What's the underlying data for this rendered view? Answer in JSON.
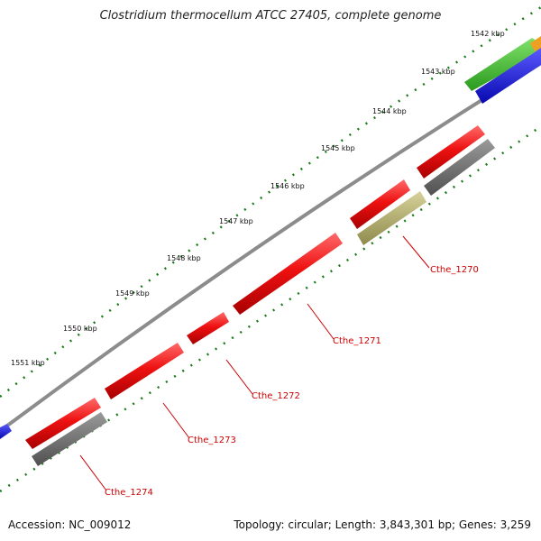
{
  "title": "Clostridium thermocellum ATCC 27405, complete genome",
  "footer": {
    "accession": "Accession: NC_009012",
    "summary": "Topology: circular; Length: 3,843,301 bp; Genes: 3,259"
  },
  "ticks": [
    "1542 kbp",
    "1543 kbp",
    "1544 kbp",
    "1545 kbp",
    "1546 kbp",
    "1547 kbp",
    "1548 kbp",
    "1549 kbp",
    "1550 kbp",
    "1551 kbp"
  ],
  "gene_labels": [
    "Cthe_1270",
    "Cthe_1271",
    "Cthe_1272",
    "Cthe_1273",
    "Cthe_1274"
  ],
  "colors": {
    "cds": "#ee1111",
    "gene": "#707070",
    "rna": "#b5b070",
    "green_feature": "#3fbf2f",
    "blue_feature": "#1414e0",
    "orange_feature": "#f0a020",
    "backbone": "#8c8c8c",
    "tick_dots": "#1a7a1a",
    "label": "#cc0000"
  }
}
